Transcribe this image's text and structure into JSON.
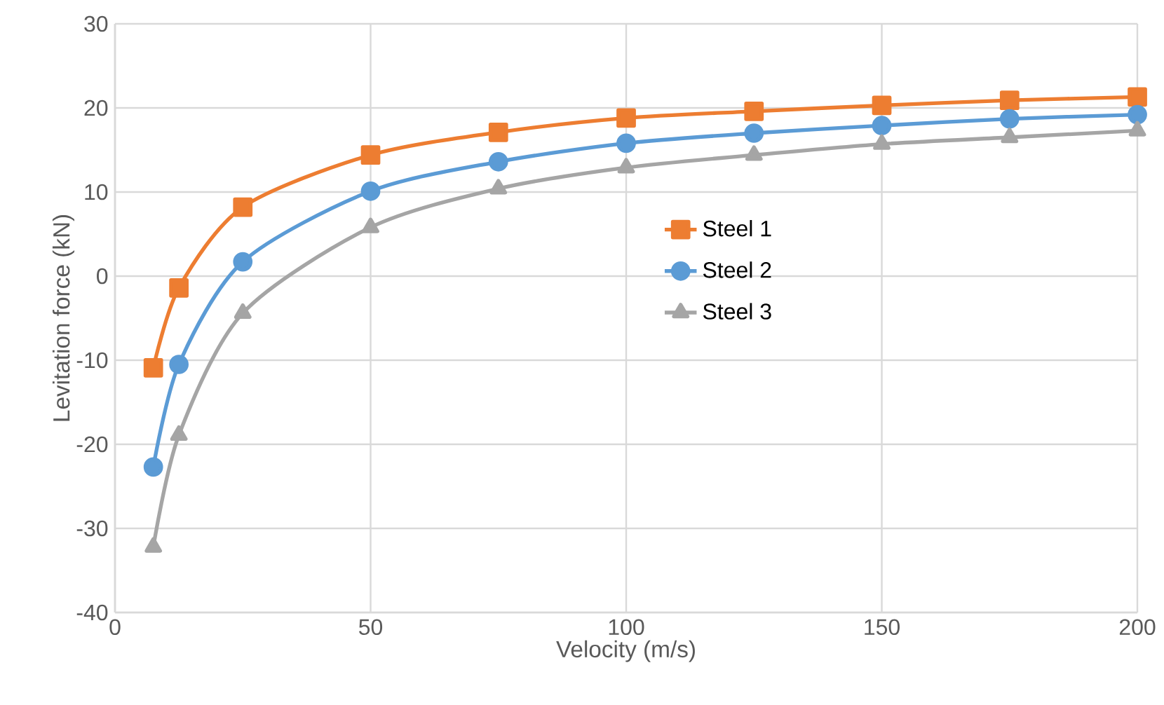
{
  "chart_data": {
    "type": "line",
    "xlabel": "Velocity (m/s)",
    "ylabel": "Levitation force (kN)",
    "x": [
      7.5,
      12.5,
      25,
      50,
      75,
      100,
      125,
      150,
      175,
      200
    ],
    "series": [
      {
        "name": "Steel 1",
        "color": "#ed7d31",
        "marker": "square",
        "values": [
          -10.9,
          -1.4,
          8.2,
          14.4,
          17.1,
          18.8,
          19.6,
          20.3,
          20.9,
          21.3
        ]
      },
      {
        "name": "Steel 2",
        "color": "#5b9bd5",
        "marker": "circle",
        "values": [
          -22.7,
          -10.5,
          1.7,
          10.1,
          13.6,
          15.8,
          17.0,
          17.9,
          18.7,
          19.2
        ]
      },
      {
        "name": "Steel 3",
        "color": "#a5a5a5",
        "marker": "triangle",
        "values": [
          -32.2,
          -18.9,
          -4.4,
          5.8,
          10.4,
          12.9,
          14.4,
          15.7,
          16.5,
          17.3
        ]
      }
    ],
    "xlim": [
      0,
      200
    ],
    "xticks": [
      0,
      50,
      100,
      150,
      200
    ],
    "ylim": [
      -40,
      30
    ],
    "yticks": [
      -40,
      -30,
      -20,
      -10,
      0,
      10,
      20,
      30
    ],
    "grid": true,
    "legend": "right",
    "line_style": "solid"
  }
}
